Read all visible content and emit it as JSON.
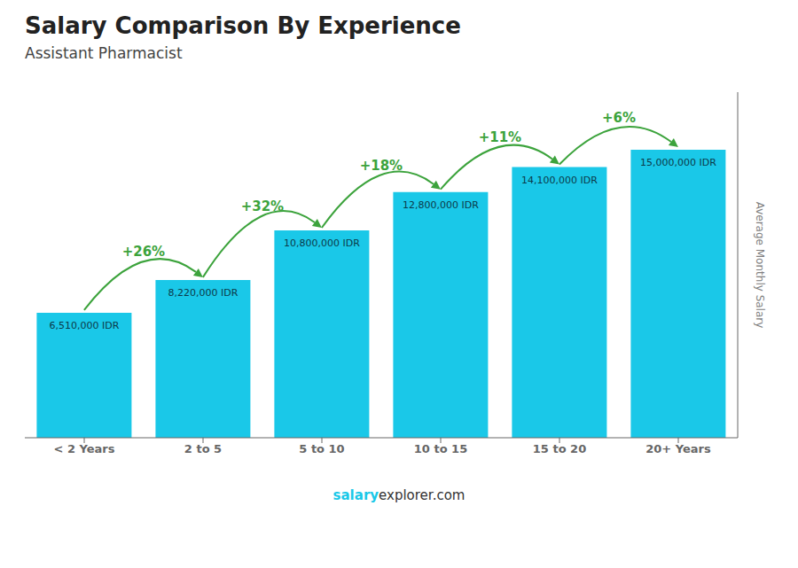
{
  "chart_data": {
    "type": "bar",
    "title": "Salary Comparison By Experience",
    "subtitle": "Assistant Pharmacist",
    "categories": [
      "< 2 Years",
      "2 to 5",
      "5 to 10",
      "10 to 15",
      "15 to 20",
      "20+ Years"
    ],
    "values": [
      6510000,
      8220000,
      10800000,
      12800000,
      14100000,
      15000000
    ],
    "value_labels": [
      "6,510,000 IDR",
      "8,220,000 IDR",
      "10,800,000 IDR",
      "12,800,000 IDR",
      "14,100,000 IDR",
      "15,000,000 IDR"
    ],
    "data_labels": true,
    "annotations": [
      "+26%",
      "+32%",
      "+18%",
      "+11%",
      "+6%"
    ],
    "footer": [
      "salary",
      "explorer.com"
    ],
    "ylabel": "Average Monthly Salary",
    "ylim": [
      0,
      18000000
    ],
    "tick_labels": "x",
    "grid": false,
    "color": "#1ac8e8"
  }
}
